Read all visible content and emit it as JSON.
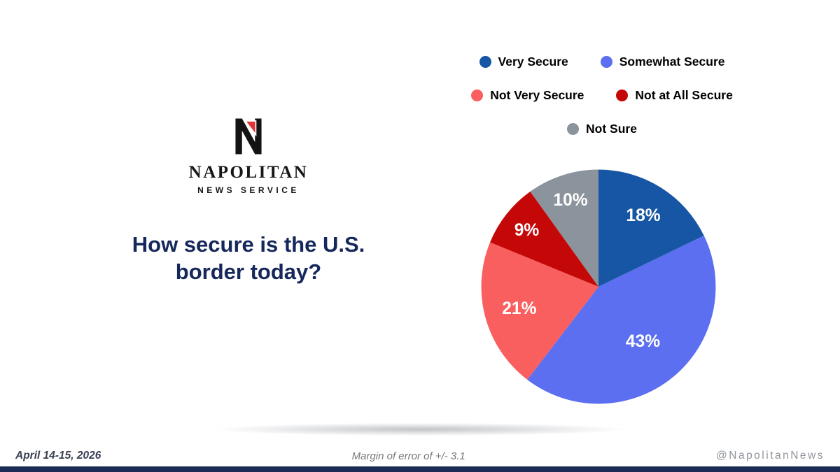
{
  "brand": {
    "name": "NAPOLITAN",
    "subtitle": "NEWS SERVICE"
  },
  "title": "How secure is the U.S. border today?",
  "chart_data": {
    "type": "pie",
    "title": "How secure is the U.S. border today?",
    "labels": [
      "Very Secure",
      "Somewhat Secure",
      "Not Very Secure",
      "Not at All Secure",
      "Not Sure"
    ],
    "values": [
      18,
      43,
      21,
      9,
      10
    ],
    "data_labels": [
      "18%",
      "43%",
      "21%",
      "9%",
      "10%"
    ],
    "colors": [
      "#1656a4",
      "#5b6ff0",
      "#f95f5f",
      "#c40707",
      "#8b939c"
    ],
    "legend_position": "top",
    "start_angle_deg": 0,
    "direction": "clockwise"
  },
  "footer": {
    "date": "April 14-15, 2026",
    "margin_of_error": "Margin of error of +/- 3.1",
    "handle": "@NapolitanNews"
  },
  "style": {
    "accent_navy": "#16275b",
    "logo_red": "#e03434",
    "bottom_bar": "#1c2b55"
  }
}
